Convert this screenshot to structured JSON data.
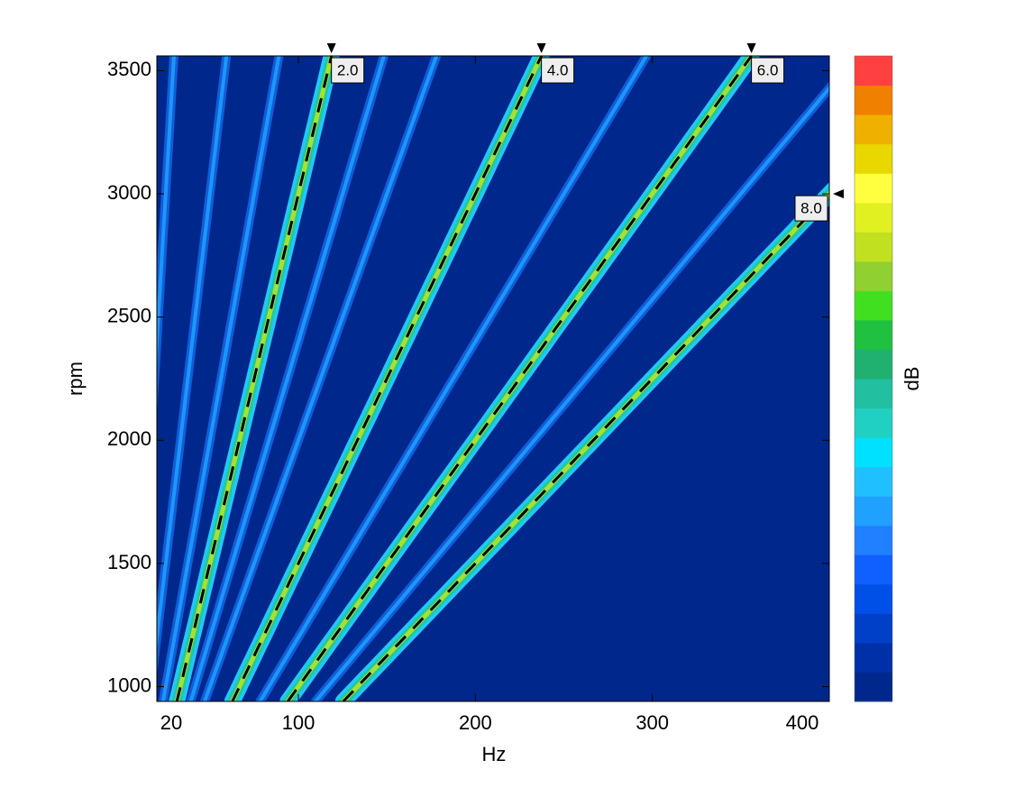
{
  "chart_data": {
    "type": "heatmap",
    "xlabel": "Hz",
    "ylabel": "rpm",
    "xlim": [
      20,
      400
    ],
    "xticks": [
      20,
      100,
      200,
      300,
      400
    ],
    "ylim": [
      940,
      3560
    ],
    "yticks": [
      1000,
      1500,
      2000,
      2500,
      3000,
      3500
    ],
    "orders": [
      {
        "value": 2,
        "label": "2.0"
      },
      {
        "value": 4,
        "label": "4.0"
      },
      {
        "value": 6,
        "label": "6.0"
      },
      {
        "value": 8,
        "label": "8.0"
      }
    ],
    "order_colors": [
      "#20c8ff",
      "#20c8a0",
      "#a8e030"
    ],
    "faint_orders": [
      0.5,
      1,
      1.5,
      2.5,
      3,
      5,
      7
    ],
    "faint_colors": [
      "#1466e6",
      "#20a0ff"
    ],
    "colorbar": {
      "label": "dB",
      "colors": [
        "#00288c",
        "#0030a8",
        "#0040c8",
        "#0050e8",
        "#1060ff",
        "#2080ff",
        "#20a0ff",
        "#20c0ff",
        "#00e0ff",
        "#20d0c0",
        "#20c0a0",
        "#20b070",
        "#20c040",
        "#40e020",
        "#90d030",
        "#c0e020",
        "#e0f020",
        "#ffff40",
        "#e8d800",
        "#f0b000",
        "#f08000",
        "#ff4040"
      ]
    }
  }
}
